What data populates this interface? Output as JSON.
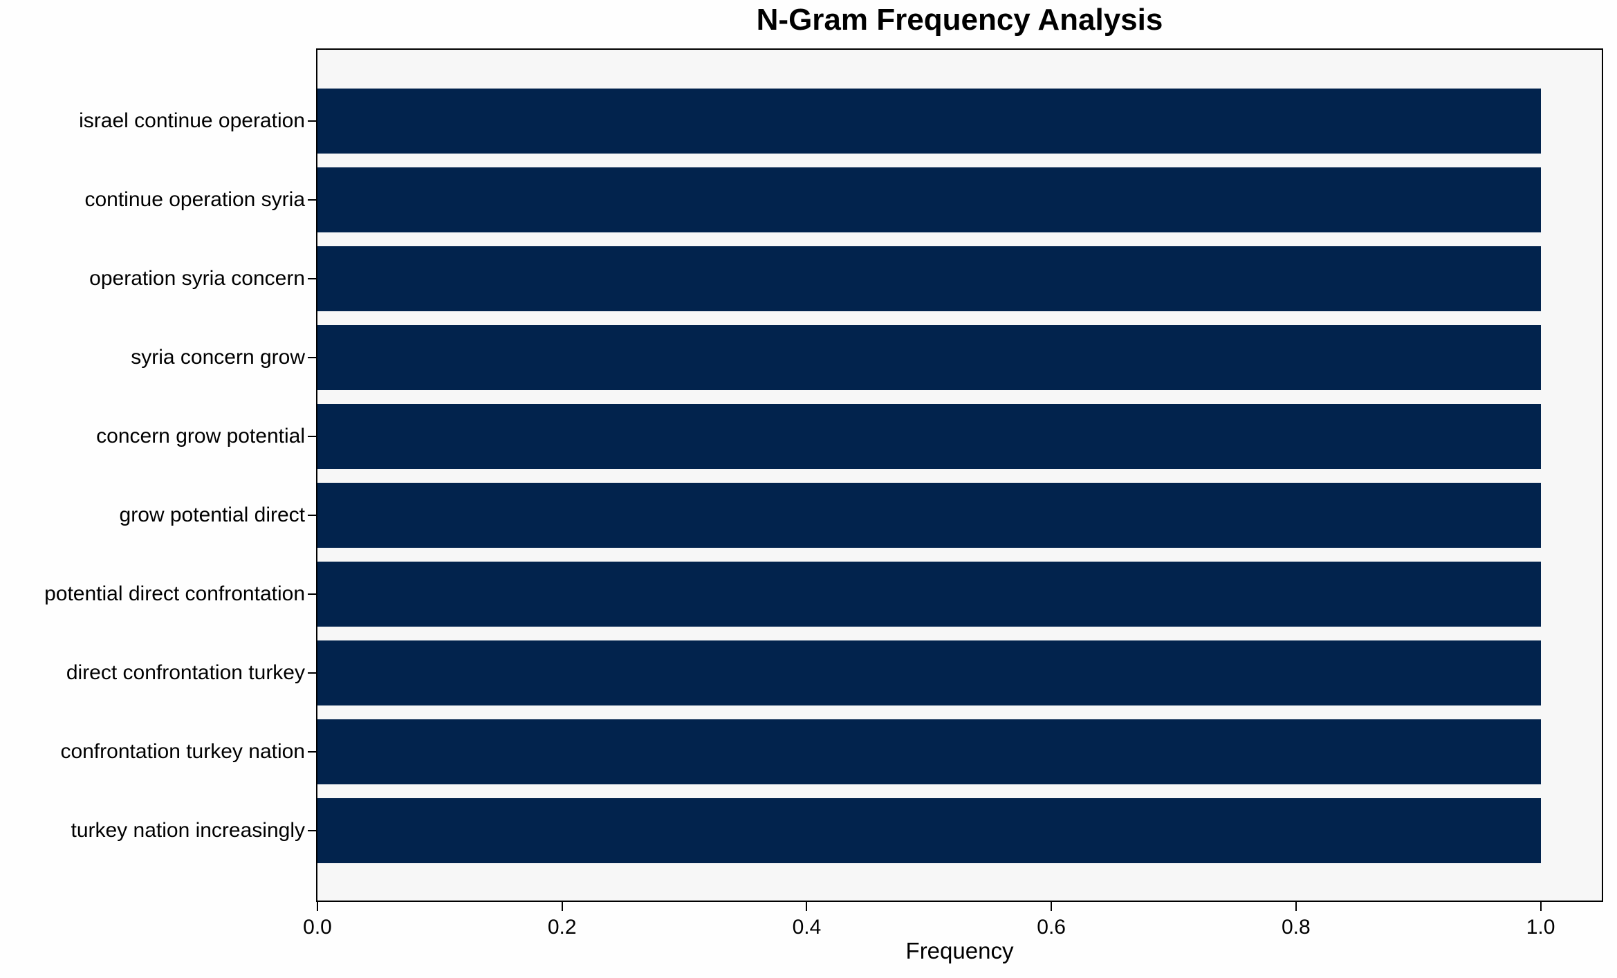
{
  "chart_data": {
    "type": "bar",
    "orientation": "horizontal",
    "title": "N-Gram Frequency Analysis",
    "xlabel": "Frequency",
    "ylabel": "",
    "categories": [
      "israel continue operation",
      "continue operation syria",
      "operation syria concern",
      "syria concern grow",
      "concern grow potential",
      "grow potential direct",
      "potential direct confrontation",
      "direct confrontation turkey",
      "confrontation turkey nation",
      "turkey nation increasingly"
    ],
    "values": [
      1.0,
      1.0,
      1.0,
      1.0,
      1.0,
      1.0,
      1.0,
      1.0,
      1.0,
      1.0
    ],
    "xlim": [
      0.0,
      1.05
    ],
    "x_ticks": [
      {
        "value": 0.0,
        "label": "0.0"
      },
      {
        "value": 0.2,
        "label": "0.2"
      },
      {
        "value": 0.4,
        "label": "0.4"
      },
      {
        "value": 0.6,
        "label": "0.6"
      },
      {
        "value": 0.8,
        "label": "0.8"
      },
      {
        "value": 1.0,
        "label": "1.0"
      }
    ],
    "grid": false,
    "legend": null,
    "colors": {
      "bar": "#02234d",
      "plot_background": "#f7f7f7",
      "figure_background": "#fefefe",
      "spine": "#000000",
      "text": "#000000"
    }
  }
}
